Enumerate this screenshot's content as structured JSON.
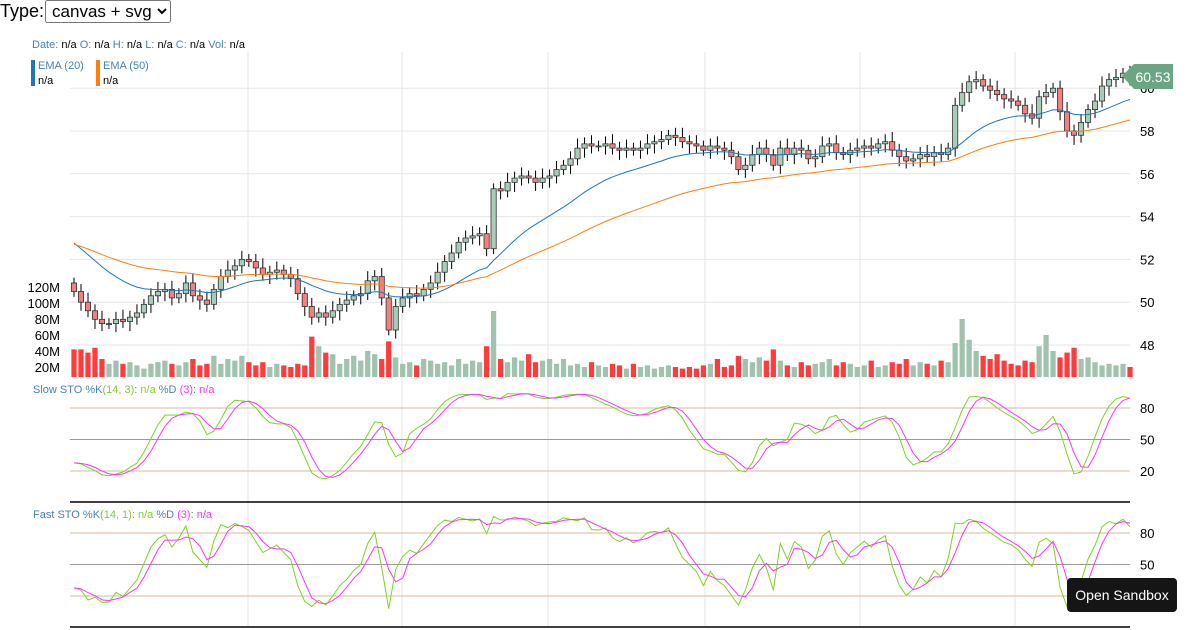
{
  "controls": {
    "type_label": "Type:",
    "type_value": "canvas + svg"
  },
  "tooltip": {
    "date_label": "Date:",
    "open_label": "O:",
    "high_label": "H:",
    "low_label": "L:",
    "close_label": "C:",
    "vol_label": "Vol:",
    "date": "n/a",
    "open": "n/a",
    "high": "n/a",
    "low": "n/a",
    "close": "n/a",
    "vol": "n/a"
  },
  "ema_legend": [
    {
      "label": "EMA (20)",
      "value": "n/a",
      "color": "#1f77b4"
    },
    {
      "label": "EMA (50)",
      "value": "n/a",
      "color": "#ff7f0e"
    }
  ],
  "slow_sto": {
    "name": "Slow STO %K",
    "params": "(14, 3)",
    "k_value": "n/a",
    "d_label": "%D",
    "d_params": "(3)",
    "d_value": "n/a"
  },
  "fast_sto": {
    "name": "Fast STO %K",
    "params": "(14, 1)",
    "k_value": "n/a",
    "d_label": "%D",
    "d_params": "(3)",
    "d_value": "n/a"
  },
  "last_price_label": "60.53",
  "sandbox_button": "Open Sandbox",
  "colors": {
    "up": "#a9ccb8",
    "down": "#f28080",
    "vol_up": "#9fc3ad",
    "vol_down": "#ff3b3b",
    "price_badge": "#6ba583",
    "k": "#7ed321",
    "d": "#ff33ff"
  },
  "chart_data": {
    "type": "candlestick",
    "price_axis": {
      "ticks": [
        48,
        50,
        52,
        54,
        56,
        58,
        60
      ],
      "range": [
        47.2,
        61.2
      ]
    },
    "volume_axis": {
      "ticks": [
        "20M",
        "40M",
        "60M",
        "80M",
        "100M",
        "120M"
      ],
      "tick_values": [
        20,
        40,
        60,
        80,
        100,
        120
      ],
      "unit": "M"
    },
    "sto_axis_slow": {
      "ticks": [
        20,
        50,
        80
      ]
    },
    "sto_axis_fast": {
      "ticks": [
        50,
        80
      ]
    },
    "close": [
      50.5,
      50.0,
      49.6,
      49.2,
      49.0,
      49.0,
      49.2,
      49.1,
      49.3,
      49.5,
      49.9,
      50.3,
      50.5,
      50.6,
      50.2,
      50.4,
      50.9,
      50.3,
      50.1,
      49.9,
      50.6,
      51.2,
      51.5,
      51.7,
      52.0,
      51.9,
      51.6,
      51.3,
      51.4,
      51.5,
      51.3,
      51.1,
      50.4,
      49.8,
      49.3,
      49.5,
      49.3,
      49.6,
      49.9,
      50.1,
      50.3,
      50.4,
      51.0,
      51.2,
      50.2,
      48.7,
      49.8,
      50.2,
      50.4,
      50.3,
      50.6,
      50.9,
      51.4,
      51.9,
      52.3,
      52.8,
      53.0,
      53.1,
      53.2,
      52.5,
      55.3,
      55.2,
      55.6,
      55.8,
      55.9,
      55.8,
      55.6,
      55.8,
      55.9,
      56.2,
      56.4,
      56.7,
      57.2,
      57.4,
      57.3,
      57.3,
      57.4,
      57.2,
      57.1,
      57.2,
      57.1,
      57.2,
      57.4,
      57.5,
      57.6,
      57.8,
      57.7,
      57.5,
      57.4,
      57.3,
      57.1,
      57.3,
      57.2,
      57.1,
      56.8,
      56.2,
      56.4,
      56.9,
      57.2,
      56.9,
      56.4,
      57.2,
      56.9,
      57.2,
      57.1,
      56.7,
      56.8,
      57.3,
      57.4,
      57.0,
      56.9,
      57.1,
      57.2,
      57.3,
      57.2,
      57.4,
      57.5,
      57.1,
      56.8,
      56.6,
      56.7,
      56.9,
      56.8,
      57.0,
      56.9,
      57.2,
      59.2,
      59.8,
      60.3,
      60.4,
      60.1,
      59.9,
      59.7,
      59.5,
      59.4,
      59.2,
      58.8,
      58.6,
      59.6,
      59.8,
      60.0,
      58.9,
      58.0,
      57.8,
      58.4,
      59.0,
      59.4,
      60.1,
      60.4,
      60.5,
      60.7,
      60.53
    ],
    "volume": [
      42,
      42,
      38,
      44,
      30,
      24,
      28,
      24,
      26,
      22,
      18,
      24,
      26,
      28,
      24,
      22,
      26,
      30,
      22,
      24,
      34,
      24,
      30,
      28,
      34,
      26,
      22,
      26,
      20,
      24,
      22,
      20,
      24,
      22,
      58,
      46,
      38,
      36,
      24,
      30,
      34,
      28,
      40,
      36,
      30,
      52,
      32,
      24,
      26,
      22,
      30,
      28,
      24,
      26,
      22,
      30,
      24,
      28,
      26,
      46,
      90,
      30,
      26,
      32,
      28,
      36,
      26,
      28,
      30,
      24,
      30,
      22,
      24,
      20,
      26,
      22,
      20,
      24,
      22,
      18,
      24,
      20,
      22,
      18,
      20,
      22,
      20,
      18,
      20,
      18,
      22,
      24,
      30,
      20,
      22,
      34,
      30,
      26,
      32,
      28,
      42,
      28,
      22,
      20,
      26,
      22,
      24,
      26,
      30,
      22,
      26,
      24,
      20,
      22,
      28,
      20,
      22,
      26,
      24,
      30,
      22,
      26,
      24,
      22,
      28,
      26,
      50,
      80,
      54,
      40,
      34,
      30,
      36,
      28,
      24,
      22,
      28,
      26,
      46,
      60,
      40,
      32,
      38,
      44,
      30,
      32,
      26,
      22,
      24,
      22,
      24,
      20
    ]
  }
}
